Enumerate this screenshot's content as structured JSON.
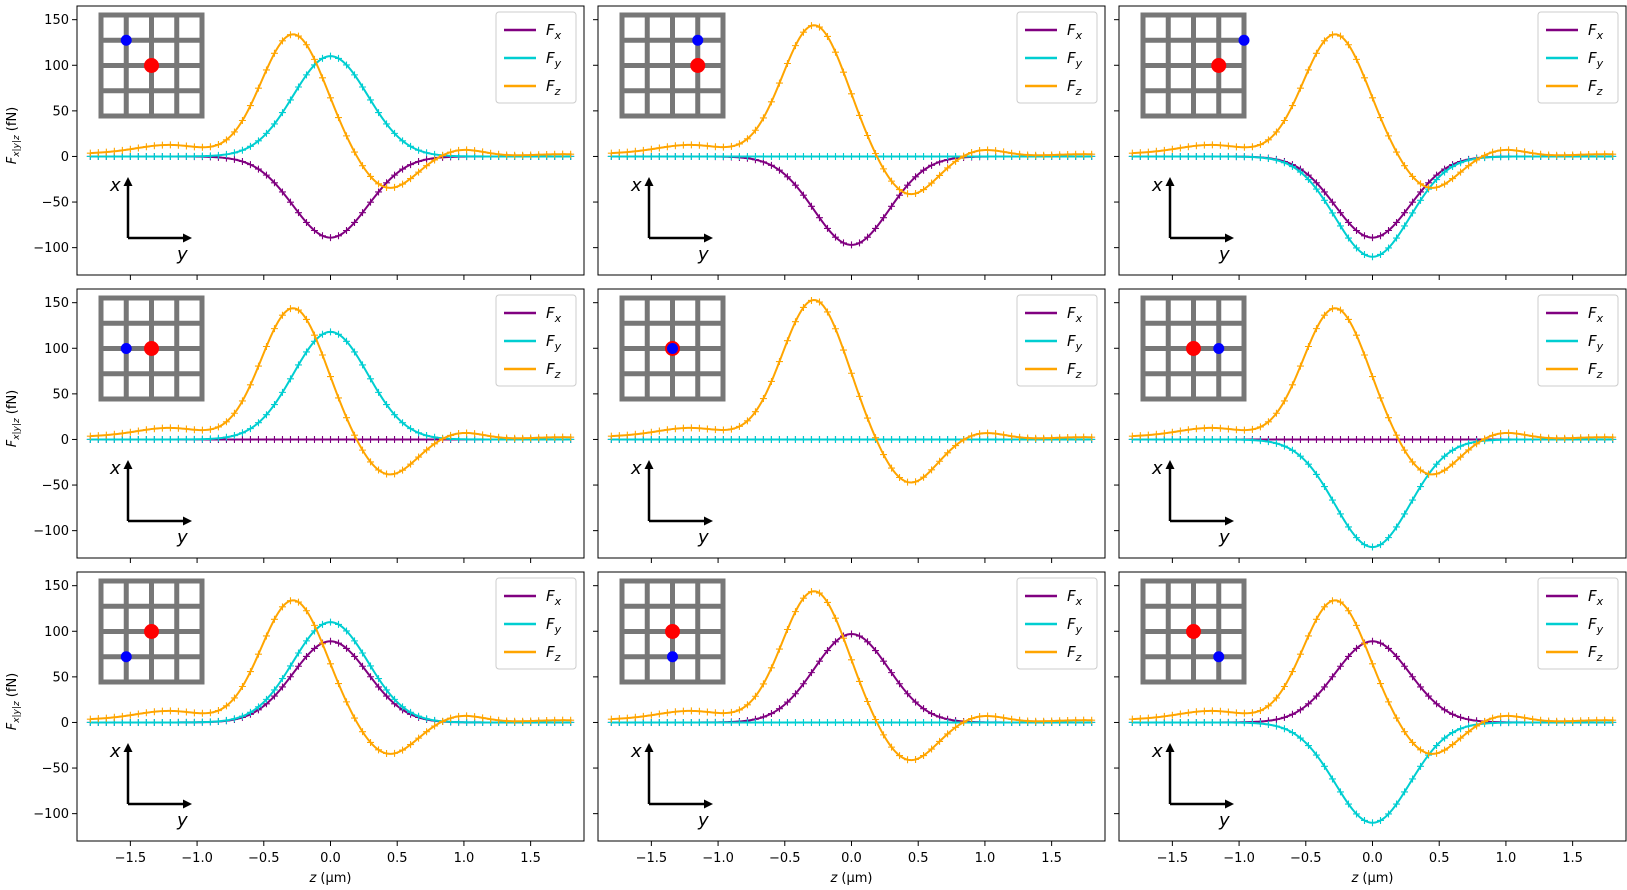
{
  "figure": {
    "ylabel": "F_{x|y|z}   (fN)",
    "ylabel_main": "F",
    "ylabel_sub": "x|y|z",
    "ylabel_unit": "(fN)",
    "xlabel": "z   (μm)",
    "xlabel_var": "z",
    "xlabel_unit": "(μm)",
    "xlim": [
      -1.9,
      1.9
    ],
    "ylim": [
      -130,
      165
    ],
    "xticks": [
      -1.5,
      -1.0,
      -0.5,
      0.0,
      0.5,
      1.0,
      1.5
    ],
    "xtick_labels": [
      "−1.5",
      "−1.0",
      "−0.5",
      "0.0",
      "0.5",
      "1.0",
      "1.5"
    ],
    "yticks": [
      -100,
      -50,
      0,
      50,
      100,
      150
    ],
    "ytick_labels": [
      "−100",
      "−50",
      "0",
      "50",
      "100",
      "150"
    ],
    "colors": {
      "Fx": "#800080",
      "Fy": "#00CED1",
      "Fz": "#FFA500",
      "grid": "#777777",
      "dot_red": "#FF0000",
      "dot_blue": "#0000FF"
    },
    "inset": {
      "axis_vertical": "x",
      "axis_horizontal": "y"
    }
  },
  "chart_data": [
    {
      "type": "line",
      "panel": "row1-col1",
      "red_dot": [
        2,
        2
      ],
      "blue_dot": [
        1,
        1
      ],
      "x_range": [
        -1.8,
        1.8
      ],
      "legend": [
        "F_x",
        "F_y",
        "F_z"
      ],
      "series": [
        {
          "name": "F_x",
          "peak": -89,
          "peak_z": 0.0,
          "width": 0.28
        },
        {
          "name": "F_y",
          "peak": 110,
          "peak_z": 0.0,
          "width": 0.28
        },
        {
          "name": "F_z",
          "peak": 134,
          "trough": -36,
          "peak_z": -0.28,
          "trough_z": 0.43,
          "side_bump": 12
        }
      ]
    },
    {
      "type": "line",
      "panel": "row1-col2",
      "red_dot": [
        2,
        3
      ],
      "blue_dot": [
        1,
        3
      ],
      "x_range": [
        -1.8,
        1.8
      ],
      "legend": [
        "F_x",
        "F_y",
        "F_z"
      ],
      "series": [
        {
          "name": "F_x",
          "peak": -97,
          "peak_z": 0.0,
          "width": 0.28
        },
        {
          "name": "F_y",
          "peak": 0,
          "peak_z": 0.0,
          "width": 0.28
        },
        {
          "name": "F_z",
          "peak": 144,
          "trough": -43,
          "peak_z": -0.28,
          "trough_z": 0.43,
          "side_bump": 12
        }
      ]
    },
    {
      "type": "line",
      "panel": "row1-col3",
      "red_dot": [
        2,
        3
      ],
      "blue_dot": [
        1,
        4
      ],
      "x_range": [
        -1.8,
        1.8
      ],
      "legend": [
        "F_x",
        "F_y",
        "F_z"
      ],
      "series": [
        {
          "name": "F_x",
          "peak": -89,
          "peak_z": 0.0,
          "width": 0.28
        },
        {
          "name": "F_y",
          "peak": -110,
          "peak_z": 0.0,
          "width": 0.28
        },
        {
          "name": "F_z",
          "peak": 134,
          "trough": -36,
          "peak_z": -0.28,
          "trough_z": 0.43,
          "side_bump": 12
        }
      ]
    },
    {
      "type": "line",
      "panel": "row2-col1",
      "red_dot": [
        2,
        2
      ],
      "blue_dot": [
        2,
        1
      ],
      "x_range": [
        -1.8,
        1.8
      ],
      "legend": [
        "F_x",
        "F_y",
        "F_z"
      ],
      "series": [
        {
          "name": "F_x",
          "peak": 0,
          "peak_z": 0.0,
          "width": 0.28
        },
        {
          "name": "F_y",
          "peak": 118,
          "peak_z": 0.0,
          "width": 0.28
        },
        {
          "name": "F_z",
          "peak": 144,
          "trough": -40,
          "peak_z": -0.28,
          "trough_z": 0.43,
          "side_bump": 12
        }
      ]
    },
    {
      "type": "line",
      "panel": "row2-col2",
      "red_dot": [
        2,
        2
      ],
      "blue_dot": [
        2,
        2
      ],
      "x_range": [
        -1.8,
        1.8
      ],
      "legend": [
        "F_x",
        "F_y",
        "F_z"
      ],
      "series": [
        {
          "name": "F_x",
          "peak": 0,
          "peak_z": 0.0,
          "width": 0.28
        },
        {
          "name": "F_y",
          "peak": 0,
          "peak_z": 0.0,
          "width": 0.28
        },
        {
          "name": "F_z",
          "peak": 153,
          "trough": -49,
          "peak_z": -0.28,
          "trough_z": 0.43,
          "side_bump": 12
        }
      ]
    },
    {
      "type": "line",
      "panel": "row2-col3",
      "red_dot": [
        2,
        2
      ],
      "blue_dot": [
        2,
        3
      ],
      "x_range": [
        -1.8,
        1.8
      ],
      "legend": [
        "F_x",
        "F_y",
        "F_z"
      ],
      "series": [
        {
          "name": "F_x",
          "peak": 0,
          "peak_z": 0.0,
          "width": 0.28
        },
        {
          "name": "F_y",
          "peak": -118,
          "peak_z": 0.0,
          "width": 0.28
        },
        {
          "name": "F_z",
          "peak": 144,
          "trough": -40,
          "peak_z": -0.28,
          "trough_z": 0.43,
          "side_bump": 12
        }
      ]
    },
    {
      "type": "line",
      "panel": "row3-col1",
      "red_dot": [
        2,
        2
      ],
      "blue_dot": [
        3,
        1
      ],
      "x_range": [
        -1.8,
        1.8
      ],
      "legend": [
        "F_x",
        "F_y",
        "F_z"
      ],
      "series": [
        {
          "name": "F_x",
          "peak": 89,
          "peak_z": 0.0,
          "width": 0.28
        },
        {
          "name": "F_y",
          "peak": 110,
          "peak_z": 0.0,
          "width": 0.28
        },
        {
          "name": "F_z",
          "peak": 134,
          "trough": -36,
          "peak_z": -0.28,
          "trough_z": 0.43,
          "side_bump": 12
        }
      ]
    },
    {
      "type": "line",
      "panel": "row3-col2",
      "red_dot": [
        2,
        2
      ],
      "blue_dot": [
        3,
        2
      ],
      "x_range": [
        -1.8,
        1.8
      ],
      "legend": [
        "F_x",
        "F_y",
        "F_z"
      ],
      "series": [
        {
          "name": "F_x",
          "peak": 97,
          "peak_z": 0.0,
          "width": 0.28
        },
        {
          "name": "F_y",
          "peak": 0,
          "peak_z": 0.0,
          "width": 0.28
        },
        {
          "name": "F_z",
          "peak": 144,
          "trough": -43,
          "peak_z": -0.28,
          "trough_z": 0.43,
          "side_bump": 12
        }
      ]
    },
    {
      "type": "line",
      "panel": "row3-col3",
      "red_dot": [
        2,
        2
      ],
      "blue_dot": [
        3,
        3
      ],
      "x_range": [
        -1.8,
        1.8
      ],
      "legend": [
        "F_x",
        "F_y",
        "F_z"
      ],
      "series": [
        {
          "name": "F_x",
          "peak": 89,
          "peak_z": 0.0,
          "width": 0.28
        },
        {
          "name": "F_y",
          "peak": -110,
          "peak_z": 0.0,
          "width": 0.28
        },
        {
          "name": "F_z",
          "peak": 134,
          "trough": -36,
          "peak_z": -0.28,
          "trough_z": 0.43,
          "side_bump": 12
        }
      ]
    }
  ]
}
